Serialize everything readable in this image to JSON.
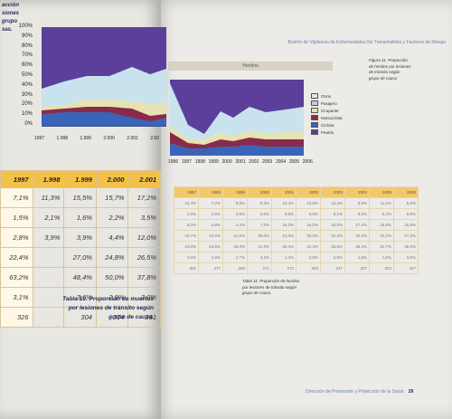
{
  "left_page": {
    "side_text": [
      "acción",
      "siones",
      "grupo",
      "sas."
    ],
    "chart": {
      "y_ticks": [
        "100%",
        "90%",
        "80%",
        "70%",
        "60%",
        "50%",
        "40%",
        "30%",
        "20%",
        "10%",
        "0%"
      ],
      "x_ticks": [
        "1997",
        "1.998",
        "1.999",
        "2.000",
        "2.001",
        "2.00"
      ],
      "colors": [
        "#5b3f9a",
        "#c9e3ee",
        "#e6e2b3",
        "#8a2a4a",
        "#3a64b8"
      ]
    },
    "table": {
      "header": [
        "1997",
        "1.998",
        "1.999",
        "2.000",
        "2.001"
      ],
      "rows": [
        [
          "7,1%",
          "11,3%",
          "15,5%",
          "15,7%",
          "17,2%"
        ],
        [
          "1,5%",
          "2,1%",
          "1,6%",
          "2,2%",
          "3,5%"
        ],
        [
          "2,8%",
          "3,9%",
          "3,9%",
          "4,4%",
          "12,0%"
        ],
        [
          "22,4%",
          "",
          "27,0%",
          "24,8%",
          "26,5%"
        ],
        [
          "63,2%",
          "",
          "48,4%",
          "50,0%",
          "37,8%"
        ],
        [
          "3,1%",
          "",
          "3,6%",
          "2,9%",
          "3,0%"
        ],
        [
          "326",
          "",
          "304",
          "274",
          "291"
        ]
      ]
    },
    "caption": [
      "Tabla 10. Proporción de muertos",
      "por lesiones de tránsito según",
      "grupo de causa."
    ]
  },
  "right_page": {
    "header": "Boletín de Vigilancia de Enfermedades No Transmisibles y Factores de Riesgo",
    "chart_title": "Heridos",
    "side_caption": [
      "Figura 11. Proporción",
      "de heridos por lesiones",
      "de tránsito según",
      "grupo de causa"
    ],
    "x_ticks": [
      "1996",
      "1997",
      "1998",
      "1999",
      "2000",
      "2001",
      "2002",
      "2003",
      "2004",
      "2005",
      "2006"
    ],
    "legend": [
      {
        "label": "Otros",
        "color": "#d9e8f2"
      },
      {
        "label": "Pasajero",
        "color": "#c9c9e8"
      },
      {
        "label": "Ocupante",
        "color": "#e6e2b3"
      },
      {
        "label": "Motociclista",
        "color": "#8a2a4a"
      },
      {
        "label": "Ciclista",
        "color": "#3a64b8"
      },
      {
        "label": "Peatón",
        "color": "#5b3f9a"
      }
    ],
    "table_header": [
      "1997",
      "1998",
      "1999",
      "2000",
      "2001",
      "2002",
      "2003",
      "2004",
      "2005",
      "2006"
    ],
    "table_rows": [
      [
        "15,4%",
        "7,2%",
        "9,8%",
        "8,3%",
        "10,4%",
        "10,9%",
        "15,4%",
        "6,9%",
        "11,2%",
        "5,2%"
      ],
      [
        "1,9%",
        "1,6%",
        "2,6%",
        "3,6%",
        "9,8%",
        "6,8%",
        "8,1%",
        "9,0%",
        "6,4%",
        "9,8%"
      ],
      [
        "5,0%",
        "3,8%",
        "4,4%",
        "7,2%",
        "16,2%",
        "16,0%",
        "15,0%",
        "17,4%",
        "15,8%",
        "16,8%"
      ],
      [
        "32,7%",
        "32,5%",
        "31,5%",
        "35,0%",
        "23,3%",
        "30,0%",
        "22,2%",
        "32,4%",
        "34,2%",
        "27,3%"
      ],
      [
        "44,0%",
        "54,5%",
        "45,4%",
        "41,3%",
        "39,4%",
        "41,3%",
        "35,6%",
        "36,4%",
        "34,7%",
        "38,2%"
      ],
      [
        "3,6%",
        "4,6%",
        "2,7%",
        "4,3%",
        "1,3%",
        "2,8%",
        "2,8%",
        "1,6%",
        "1,6%",
        "2,8%"
      ],
      [
        "301",
        "277",
        "298",
        "271",
        "272",
        "263",
        "247",
        "307",
        "324",
        "427"
      ]
    ],
    "table_caption": [
      "Tabla 11. Proporción de heridos",
      "por lesiones de tránsito según",
      "grupo de causa."
    ],
    "footer": "Dirección de Promoción y Protección de la Salud",
    "page_number": "29"
  }
}
